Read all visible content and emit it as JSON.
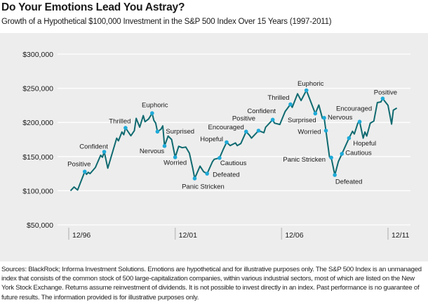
{
  "header": {
    "title": "Do Your Emotions Lead You Astray?",
    "subtitle": "Growth of a Hypothetical $100,000 Investment in the S&P 500 Index Over 15 Years (1997-2011)"
  },
  "footer": {
    "notes": "Sources: BlackRock; Informa Investment Solutions. Emotions are hypothetical and for illustrative purposes only. The S&P 500 Index is an unmanaged index that consists of the common stock of 500 large-capitalization companies, within various industrial sectors, most of which are listed on the New York Stock Exchange. Returns assume reinvestment of dividends. It is not possible to invest directly in an index. Past performance is no guarantee of future results. The information provided is for illustrative purposes only."
  },
  "colors": {
    "background": "#ededed",
    "gridline": "#ffffff",
    "line": "#0f6a70",
    "marker": "#1eaad8"
  },
  "chart_data": {
    "type": "line",
    "title": "Do Your Emotions Lead You Astray?",
    "subtitle": "Growth of a Hypothetical $100,000 Investment in the S&P 500 Index Over 15 Years (1997-2011)",
    "xlabel": "",
    "ylabel": "",
    "ylim": [
      50000,
      300000
    ],
    "xlim": [
      "1996-12",
      "2011-12"
    ],
    "grid": "horizontal",
    "y_ticks": [
      {
        "value": 300000,
        "label": "$300,000"
      },
      {
        "value": 250000,
        "label": "$250,000"
      },
      {
        "value": 200000,
        "label": "$200,000"
      },
      {
        "value": 150000,
        "label": "$150,000"
      },
      {
        "value": 100000,
        "label": "$100,000"
      },
      {
        "value": 50000,
        "label": "$50,000"
      }
    ],
    "x_ticks": [
      {
        "date": "1996-12",
        "label": "12/96"
      },
      {
        "date": "2001-12",
        "label": "12/01"
      },
      {
        "date": "2006-12",
        "label": "12/06"
      },
      {
        "date": "2011-12",
        "label": "12/11"
      }
    ],
    "series": [
      {
        "points": [
          [
            "1997-01",
            100000
          ],
          [
            "1997-03",
            105500
          ],
          [
            "1997-05",
            101000
          ],
          [
            "1997-09",
            128000
          ],
          [
            "1997-10",
            124000
          ],
          [
            "1997-11",
            127000
          ],
          [
            "1997-12",
            125000
          ],
          [
            "1998-03",
            134000
          ],
          [
            "1998-06",
            152000
          ],
          [
            "1998-07",
            149000
          ],
          [
            "1998-08",
            157000
          ],
          [
            "1998-10",
            133000
          ],
          [
            "1999-03",
            177000
          ],
          [
            "1999-04",
            173000
          ],
          [
            "1999-06",
            186000
          ],
          [
            "1999-07",
            182000
          ],
          [
            "1999-08",
            192000
          ],
          [
            "1999-11",
            180500
          ],
          [
            "2000-01",
            188000
          ],
          [
            "2000-02",
            206000
          ],
          [
            "2000-04",
            193000
          ],
          [
            "2000-06",
            210000
          ],
          [
            "2000-07",
            201000
          ],
          [
            "2000-09",
            205000
          ],
          [
            "2000-11",
            213500
          ],
          [
            "2000-12",
            203000
          ],
          [
            "2001-01",
            199000
          ],
          [
            "2001-02",
            186500
          ],
          [
            "2001-04",
            190000
          ],
          [
            "2001-05",
            195000
          ],
          [
            "2001-06",
            165500
          ],
          [
            "2001-08",
            180000
          ],
          [
            "2001-10",
            175000
          ],
          [
            "2001-12",
            149000
          ],
          [
            "2002-02",
            165000
          ],
          [
            "2002-04",
            163000
          ],
          [
            "2002-06",
            164000
          ],
          [
            "2002-08",
            155000
          ],
          [
            "2002-10",
            132000
          ],
          [
            "2002-11",
            118000
          ],
          [
            "2003-02",
            136000
          ],
          [
            "2003-04",
            128000
          ],
          [
            "2003-06",
            125000
          ],
          [
            "2003-09",
            142500
          ],
          [
            "2003-10",
            146000
          ],
          [
            "2004-01",
            148000
          ],
          [
            "2004-03",
            160000
          ],
          [
            "2004-05",
            171000
          ],
          [
            "2004-07",
            166000
          ],
          [
            "2004-10",
            170000
          ],
          [
            "2004-11",
            166000
          ],
          [
            "2005-01",
            169000
          ],
          [
            "2005-04",
            186500
          ],
          [
            "2005-06",
            181000
          ],
          [
            "2005-07",
            177000
          ],
          [
            "2005-11",
            188000
          ],
          [
            "2006-02",
            185000
          ],
          [
            "2006-03",
            193000
          ],
          [
            "2006-07",
            204000
          ],
          [
            "2006-08",
            199000
          ],
          [
            "2006-11",
            197000
          ],
          [
            "2007-02",
            216000
          ],
          [
            "2007-05",
            226500
          ],
          [
            "2007-06",
            222000
          ],
          [
            "2007-09",
            242000
          ],
          [
            "2007-11",
            232000
          ],
          [
            "2008-02",
            247000
          ],
          [
            "2008-03",
            240000
          ],
          [
            "2008-07",
            213000
          ],
          [
            "2008-09",
            225500
          ],
          [
            "2008-11",
            206000
          ],
          [
            "2008-12",
            206700
          ],
          [
            "2009-01",
            188000
          ],
          [
            "2009-03",
            149500
          ],
          [
            "2009-04",
            148500
          ],
          [
            "2009-06",
            123000
          ],
          [
            "2009-08",
            142500
          ],
          [
            "2009-10",
            154000
          ],
          [
            "2010-02",
            177000
          ],
          [
            "2010-04",
            187000
          ],
          [
            "2010-05",
            183000
          ],
          [
            "2010-07",
            199000
          ],
          [
            "2010-08",
            201000
          ],
          [
            "2010-10",
            177000
          ],
          [
            "2010-11",
            186000
          ],
          [
            "2010-12",
            180000
          ],
          [
            "2011-02",
            199000
          ],
          [
            "2011-04",
            202000
          ],
          [
            "2011-06",
            229000
          ],
          [
            "2011-08",
            230000
          ],
          [
            "2011-09",
            235000
          ],
          [
            "2011-12",
            225000
          ],
          [
            "2012-02",
            197500
          ],
          [
            "2012-03",
            218000
          ],
          [
            "2012-05",
            221000
          ]
        ]
      }
    ],
    "annotations": [
      {
        "date": "1997-09",
        "value": 128000,
        "label": "Positive"
      },
      {
        "date": "1998-08",
        "value": 157000,
        "label": "Confident"
      },
      {
        "date": "1999-08",
        "value": 192000,
        "label": "Thrilled"
      },
      {
        "date": "2000-11",
        "value": 213500,
        "label": "Euphoric"
      },
      {
        "date": "2001-02",
        "value": 186500,
        "label": "Surprised"
      },
      {
        "date": "2001-06",
        "value": 165500,
        "label": "Nervous"
      },
      {
        "date": "2001-12",
        "value": 149000,
        "label": "Worried"
      },
      {
        "date": "2002-11",
        "value": 118000,
        "label": "Panic Stricken"
      },
      {
        "date": "2003-06",
        "value": 125000,
        "label": "Defeated"
      },
      {
        "date": "2004-01",
        "value": 148000,
        "label": "Cautious"
      },
      {
        "date": "2004-05",
        "value": 171000,
        "label": "Hopeful"
      },
      {
        "date": "2005-04",
        "value": 186500,
        "label": "Encouraged"
      },
      {
        "date": "2005-11",
        "value": 188000,
        "label": "Positive"
      },
      {
        "date": "2006-07",
        "value": 204000,
        "label": "Confident"
      },
      {
        "date": "2007-05",
        "value": 226500,
        "label": "Thrilled"
      },
      {
        "date": "2008-02",
        "value": 247000,
        "label": "Euphoric"
      },
      {
        "date": "2008-07",
        "value": 213000,
        "label": "Surprised"
      },
      {
        "date": "2008-12",
        "value": 206700,
        "label": "Nervous"
      },
      {
        "date": "2009-01",
        "value": 188000,
        "label": "Worried"
      },
      {
        "date": "2009-04",
        "value": 148500,
        "label": "Panic Stricken"
      },
      {
        "date": "2009-06",
        "value": 123000,
        "label": "Defeated"
      },
      {
        "date": "2009-10",
        "value": 154000,
        "label": "Cautious"
      },
      {
        "date": "2010-02",
        "value": 177000,
        "label": "Hopeful"
      },
      {
        "date": "2010-08",
        "value": 201000,
        "label": "Encouraged"
      },
      {
        "date": "2011-09",
        "value": 235000,
        "label": "Positive"
      }
    ]
  }
}
